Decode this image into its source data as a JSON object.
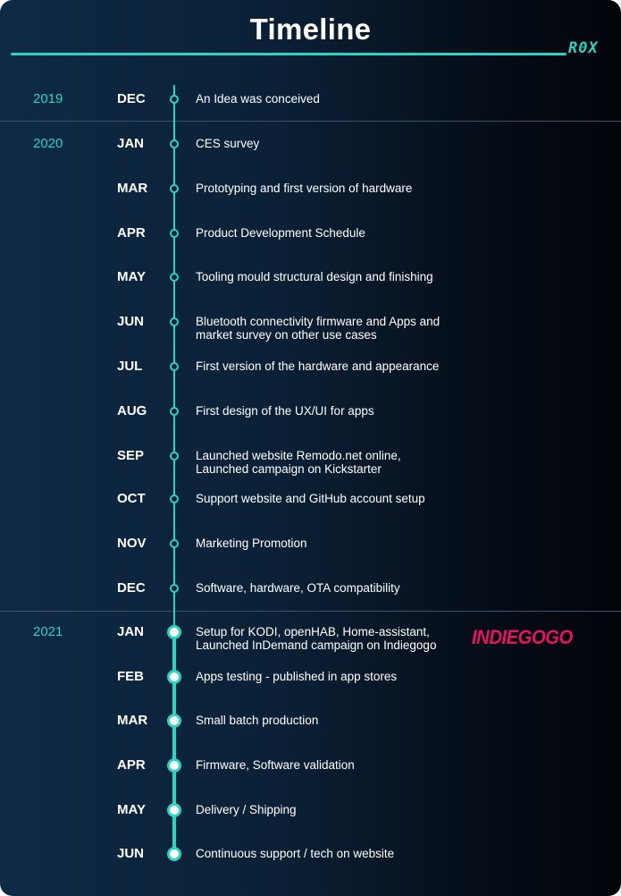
{
  "title": "Timeline",
  "logo_text": "R0X",
  "brand_logo_text": "INDIEGOGO",
  "colors": {
    "accent": "#2dd4c1",
    "brand": "#e4155f",
    "text": "#ffffff"
  },
  "years": [
    {
      "year": "2019",
      "entries": [
        {
          "month": "DEC",
          "text": [
            "An Idea was conceived"
          ]
        }
      ]
    },
    {
      "year": "2020",
      "entries": [
        {
          "month": "JAN",
          "text": [
            "CES survey"
          ]
        },
        {
          "month": "MAR",
          "text": [
            "Prototyping and first version of hardware"
          ]
        },
        {
          "month": "APR",
          "text": [
            "Product Development Schedule"
          ]
        },
        {
          "month": "MAY",
          "text": [
            "Tooling mould structural design and finishing"
          ]
        },
        {
          "month": "JUN",
          "text": [
            "Bluetooth connectivity firmware and Apps and",
            "market survey on other use cases"
          ]
        },
        {
          "month": "JUL",
          "text": [
            "First version of the hardware and appearance"
          ]
        },
        {
          "month": "AUG",
          "text": [
            "First design of the UX/UI for apps"
          ]
        },
        {
          "month": "SEP",
          "text": [
            "Launched website Remodo.net online,",
            "Launched campaign on Kickstarter"
          ]
        },
        {
          "month": "OCT",
          "text": [
            "Support website and GitHub account setup"
          ]
        },
        {
          "month": "NOV",
          "text": [
            "Marketing Promotion"
          ]
        },
        {
          "month": "DEC",
          "text": [
            "Software, hardware, OTA compatibility"
          ]
        }
      ]
    },
    {
      "year": "2021",
      "entries": [
        {
          "month": "JAN",
          "text": [
            "Setup for KODI, openHAB, Home-assistant,",
            "Launched InDemand campaign on Indiegogo"
          ]
        },
        {
          "month": "FEB",
          "text": [
            "Apps testing - published in app stores"
          ]
        },
        {
          "month": "MAR",
          "text": [
            "Small batch production"
          ]
        },
        {
          "month": "APR",
          "text": [
            "Firmware, Software validation"
          ]
        },
        {
          "month": "MAY",
          "text": [
            "Delivery / Shipping"
          ]
        },
        {
          "month": "JUN",
          "text": [
            "Continuous support / tech on website"
          ]
        }
      ]
    }
  ]
}
